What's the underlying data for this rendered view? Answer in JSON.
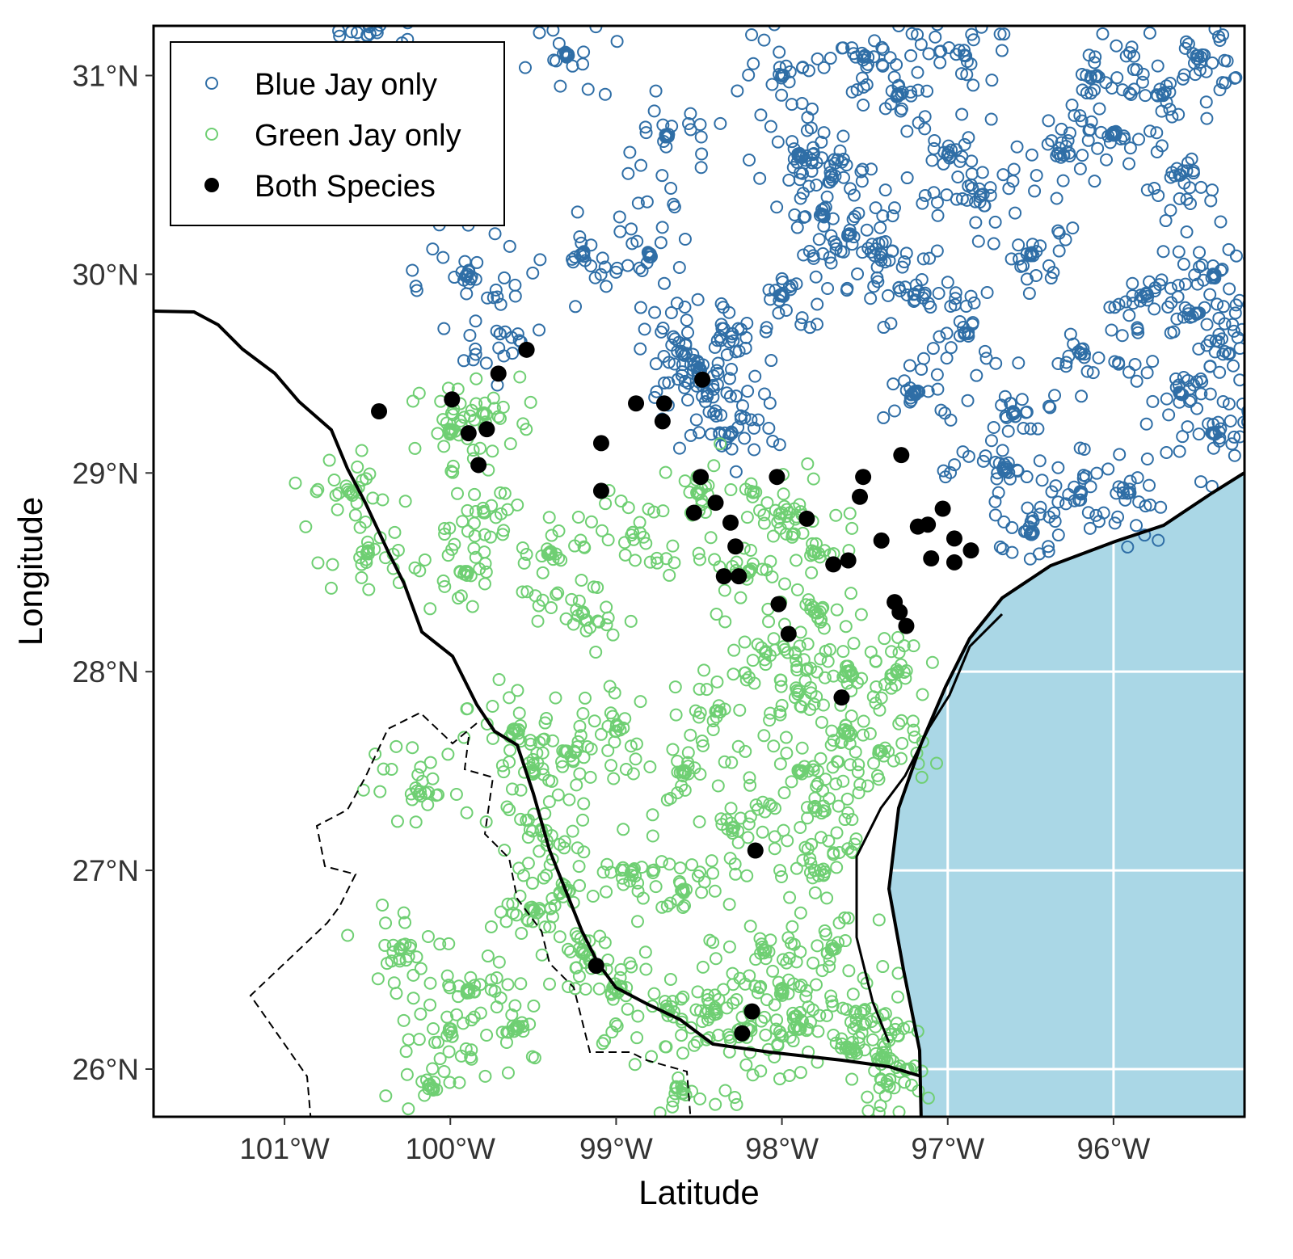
{
  "chart_data": {
    "type": "scatter",
    "xlabel": "Latitude",
    "ylabel": "Longitude",
    "xlim": [
      -101.79,
      -95.21
    ],
    "ylim": [
      25.76,
      31.25
    ],
    "x_ticks": [
      {
        "value": -101,
        "label": "101°W"
      },
      {
        "value": -100,
        "label": "100°W"
      },
      {
        "value": -99,
        "label": "99°W"
      },
      {
        "value": -98,
        "label": "98°W"
      },
      {
        "value": -97,
        "label": "97°W"
      },
      {
        "value": -96,
        "label": "96°W"
      }
    ],
    "y_ticks": [
      {
        "value": 31,
        "label": "31°N"
      },
      {
        "value": 30,
        "label": "30°N"
      },
      {
        "value": 29,
        "label": "29°N"
      },
      {
        "value": 28,
        "label": "28°N"
      },
      {
        "value": 27,
        "label": "27°N"
      },
      {
        "value": 26,
        "label": "26°N"
      }
    ],
    "grid": true,
    "legend_position": "top-left",
    "colors": {
      "blue_jay": "#2f6ea6",
      "green_jay": "#6fcf73",
      "both": "#000000",
      "water": "#aad7e6"
    },
    "series": [
      {
        "name": "Blue Jay only",
        "marker": "open-circle",
        "color": "#2f6ea6",
        "points": [
          [
            -98.5,
            29.5
          ],
          [
            -98.45,
            29.4
          ],
          [
            -98.6,
            29.6
          ],
          [
            -98.3,
            29.7
          ],
          [
            -97.75,
            30.3
          ],
          [
            -97.7,
            30.5
          ],
          [
            -97.9,
            30.6
          ],
          [
            -97.6,
            30.2
          ],
          [
            -97.3,
            30.9
          ],
          [
            -97.0,
            30.6
          ],
          [
            -96.8,
            30.4
          ],
          [
            -96.5,
            30.1
          ],
          [
            -96.3,
            30.6
          ],
          [
            -96.0,
            30.7
          ],
          [
            -95.6,
            30.5
          ],
          [
            -95.4,
            30.0
          ],
          [
            -95.5,
            29.8
          ],
          [
            -95.3,
            29.6
          ],
          [
            -95.6,
            29.4
          ],
          [
            -95.8,
            29.9
          ],
          [
            -95.4,
            29.2
          ],
          [
            -95.7,
            30.9
          ],
          [
            -96.2,
            29.6
          ],
          [
            -96.6,
            29.3
          ],
          [
            -96.9,
            29.7
          ],
          [
            -97.2,
            29.9
          ],
          [
            -97.4,
            30.1
          ],
          [
            -98.0,
            29.9
          ],
          [
            -98.8,
            30.1
          ],
          [
            -99.2,
            30.1
          ],
          [
            -98.0,
            31.0
          ],
          [
            -97.5,
            31.1
          ],
          [
            -96.9,
            31.1
          ],
          [
            -96.1,
            31.0
          ],
          [
            -95.5,
            31.1
          ],
          [
            -96.5,
            28.7
          ],
          [
            -96.2,
            28.9
          ],
          [
            -99.7,
            29.7
          ],
          [
            -99.9,
            30.0
          ],
          [
            -100.5,
            31.2
          ],
          [
            -99.3,
            31.1
          ],
          [
            -98.7,
            30.7
          ],
          [
            -95.9,
            28.9
          ],
          [
            -96.7,
            29.0
          ],
          [
            -97.2,
            29.4
          ],
          [
            -98.3,
            29.2
          ]
        ]
      },
      {
        "name": "Green Jay only",
        "marker": "open-circle",
        "color": "#6fcf73",
        "points": [
          [
            -98.2,
            26.2
          ],
          [
            -97.9,
            26.2
          ],
          [
            -97.6,
            26.1
          ],
          [
            -97.4,
            26.05
          ],
          [
            -97.25,
            26.0
          ],
          [
            -97.5,
            26.3
          ],
          [
            -98.0,
            26.4
          ],
          [
            -98.4,
            26.3
          ],
          [
            -98.7,
            26.3
          ],
          [
            -99.0,
            26.4
          ],
          [
            -99.2,
            26.6
          ],
          [
            -99.3,
            26.9
          ],
          [
            -99.45,
            27.2
          ],
          [
            -99.5,
            27.5
          ],
          [
            -99.6,
            27.7
          ],
          [
            -99.3,
            27.6
          ],
          [
            -98.1,
            26.6
          ],
          [
            -97.7,
            26.6
          ],
          [
            -97.8,
            27.0
          ],
          [
            -97.75,
            27.3
          ],
          [
            -97.6,
            27.7
          ],
          [
            -97.9,
            27.9
          ],
          [
            -97.6,
            28.0
          ],
          [
            -97.8,
            28.3
          ],
          [
            -97.8,
            28.6
          ],
          [
            -98.1,
            28.1
          ],
          [
            -98.4,
            27.8
          ],
          [
            -98.6,
            27.5
          ],
          [
            -98.3,
            27.2
          ],
          [
            -98.6,
            26.9
          ],
          [
            -98.9,
            27.0
          ],
          [
            -99.0,
            27.7
          ],
          [
            -99.2,
            28.3
          ],
          [
            -99.4,
            28.6
          ],
          [
            -99.8,
            28.8
          ],
          [
            -99.9,
            28.5
          ],
          [
            -100.0,
            29.2
          ],
          [
            -99.8,
            29.3
          ],
          [
            -98.9,
            28.7
          ],
          [
            -98.5,
            28.9
          ],
          [
            -98.2,
            28.5
          ],
          [
            -97.4,
            27.6
          ],
          [
            -97.3,
            28.0
          ],
          [
            -100.6,
            28.9
          ],
          [
            -100.5,
            28.6
          ],
          [
            -100.2,
            27.4
          ],
          [
            -100.0,
            26.2
          ],
          [
            -100.1,
            25.9
          ],
          [
            -99.9,
            26.4
          ],
          [
            -99.6,
            26.2
          ],
          [
            -100.3,
            26.6
          ],
          [
            -99.5,
            26.8
          ],
          [
            -98.6,
            25.9
          ],
          [
            -97.9,
            27.5
          ],
          [
            -98.0,
            28.8
          ]
        ]
      },
      {
        "name": "Both Species",
        "marker": "filled-circle",
        "color": "#000000",
        "points": [
          [
            -98.48,
            29.47
          ],
          [
            -99.54,
            29.62
          ],
          [
            -99.71,
            29.5
          ],
          [
            -99.99,
            29.37
          ],
          [
            -100.43,
            29.31
          ],
          [
            -99.89,
            29.2
          ],
          [
            -99.78,
            29.22
          ],
          [
            -99.83,
            29.04
          ],
          [
            -99.09,
            29.15
          ],
          [
            -98.88,
            29.35
          ],
          [
            -98.71,
            29.35
          ],
          [
            -98.72,
            29.26
          ],
          [
            -99.09,
            28.91
          ],
          [
            -98.49,
            28.98
          ],
          [
            -98.03,
            28.98
          ],
          [
            -98.53,
            28.8
          ],
          [
            -98.4,
            28.85
          ],
          [
            -98.31,
            28.75
          ],
          [
            -98.28,
            28.63
          ],
          [
            -98.35,
            28.48
          ],
          [
            -98.26,
            28.48
          ],
          [
            -97.85,
            28.77
          ],
          [
            -98.02,
            28.34
          ],
          [
            -97.96,
            28.19
          ],
          [
            -97.51,
            28.98
          ],
          [
            -97.53,
            28.88
          ],
          [
            -97.28,
            29.09
          ],
          [
            -97.03,
            28.82
          ],
          [
            -97.18,
            28.73
          ],
          [
            -97.12,
            28.74
          ],
          [
            -96.96,
            28.67
          ],
          [
            -96.86,
            28.61
          ],
          [
            -97.1,
            28.57
          ],
          [
            -96.96,
            28.55
          ],
          [
            -97.4,
            28.66
          ],
          [
            -97.6,
            28.56
          ],
          [
            -97.69,
            28.54
          ],
          [
            -97.32,
            28.35
          ],
          [
            -97.29,
            28.3
          ],
          [
            -97.25,
            28.23
          ],
          [
            -97.64,
            27.87
          ],
          [
            -98.16,
            27.1
          ],
          [
            -99.12,
            26.52
          ],
          [
            -98.18,
            26.29
          ],
          [
            -98.24,
            26.18
          ]
        ]
      }
    ]
  }
}
